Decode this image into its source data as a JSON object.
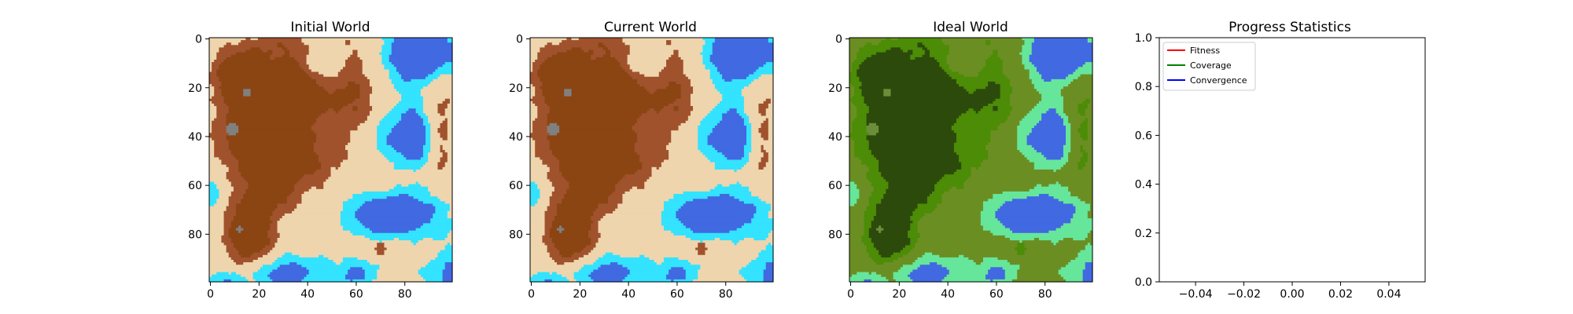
{
  "figure": {
    "panels": [
      {
        "title": "Initial World",
        "palette": "terrain"
      },
      {
        "title": "Current World",
        "palette": "terrain"
      },
      {
        "title": "Ideal World",
        "palette": "ideal"
      }
    ]
  },
  "colors": {
    "terrain": {
      "deep_water": "#4169e1",
      "shallow_water": "#33e3ff",
      "sand": "#eed5ad",
      "hill": "#a0522d",
      "mountain": "#8b4513",
      "rock": "#808080"
    },
    "ideal": {
      "deep_water": "#4169e1",
      "shallow_water": "#66e69a",
      "sand": "#6b8e23",
      "hill": "#4c8c06",
      "mountain": "#2c4a0b",
      "rock": "#6b8e3a"
    },
    "lines": {
      "fitness": "#ff0000",
      "coverage": "#008000",
      "convergence": "#0000ff"
    }
  },
  "chart_data": [
    {
      "type": "heatmap",
      "title": "Initial World",
      "grid_size": 100,
      "x_ticks": [
        0,
        20,
        40,
        60,
        80
      ],
      "y_ticks": [
        0,
        20,
        40,
        60,
        80
      ],
      "categories": [
        "deep water",
        "shallow water",
        "sand",
        "hill",
        "mountain",
        "rock"
      ]
    },
    {
      "type": "heatmap",
      "title": "Current World",
      "grid_size": 100,
      "x_ticks": [
        0,
        20,
        40,
        60,
        80
      ],
      "y_ticks": [
        0,
        20,
        40,
        60,
        80
      ],
      "categories": [
        "deep water",
        "shallow water",
        "sand",
        "hill",
        "mountain",
        "rock"
      ]
    },
    {
      "type": "heatmap",
      "title": "Ideal World",
      "grid_size": 100,
      "x_ticks": [
        0,
        20,
        40,
        60,
        80
      ],
      "y_ticks": [
        0,
        20,
        40,
        60,
        80
      ],
      "categories": [
        "deep water",
        "shallow water",
        "sand",
        "hill",
        "mountain",
        "rock"
      ]
    },
    {
      "type": "line",
      "title": "Progress Statistics",
      "series": [
        {
          "name": "Fitness",
          "values": []
        },
        {
          "name": "Coverage",
          "values": []
        },
        {
          "name": "Convergence",
          "values": []
        }
      ],
      "xlim": [
        -0.055,
        0.055
      ],
      "ylim": [
        0.0,
        1.0
      ],
      "x_ticks": [
        "−0.04",
        "−0.02",
        "0.00",
        "0.02",
        "0.04"
      ],
      "y_ticks": [
        "0.0",
        "0.2",
        "0.4",
        "0.6",
        "0.8",
        "1.0"
      ],
      "legend": "top-left"
    }
  ]
}
